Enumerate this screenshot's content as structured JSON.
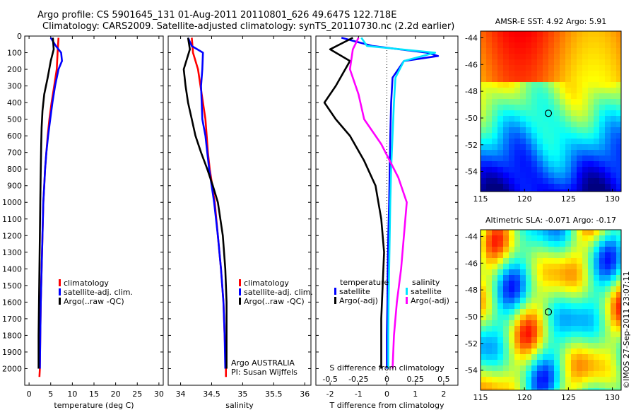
{
  "header": {
    "line1": "Argo profile: CS 5901645_131 01-Aug-2011 20110801_626 49.647S 122.718E",
    "line2": "Climatology: CARS2009. Satellite-adjusted climatology: synTS_20110730.nc (2.2d earlier)"
  },
  "colors": {
    "red": "#ff0000",
    "blue": "#0000ff",
    "black": "#000000",
    "cyan": "#00e5ff",
    "magenta": "#ff00ff"
  },
  "stamp": "©IMOS 27-Sep-2011 23:07:11",
  "chart_data": [
    {
      "type": "line",
      "id": "temperature",
      "xlabel": "temperature (deg C)",
      "ylabel": "",
      "xlim": [
        -1,
        31
      ],
      "ylim": [
        2100,
        0
      ],
      "xticks": [
        0,
        5,
        10,
        15,
        20,
        25,
        30
      ],
      "yticks": [
        0,
        100,
        200,
        300,
        400,
        500,
        600,
        700,
        800,
        900,
        1000,
        1100,
        1200,
        1300,
        1400,
        1500,
        1600,
        1700,
        1800,
        1900,
        2000
      ],
      "legend": [
        "climatology",
        "satellite-adj. clim.",
        "Argo(..raw -QC)"
      ],
      "series": [
        {
          "name": "climatology",
          "color": "red",
          "points": [
            [
              6.8,
              10
            ],
            [
              6.6,
              100
            ],
            [
              6.4,
              200
            ],
            [
              5.8,
              300
            ],
            [
              5.2,
              400
            ],
            [
              4.7,
              500
            ],
            [
              4.3,
              600
            ],
            [
              4.0,
              700
            ],
            [
              3.7,
              800
            ],
            [
              3.5,
              900
            ],
            [
              3.3,
              1000
            ],
            [
              3.1,
              1200
            ],
            [
              2.9,
              1400
            ],
            [
              2.7,
              1600
            ],
            [
              2.6,
              1800
            ],
            [
              2.5,
              2000
            ],
            [
              2.4,
              2050
            ]
          ]
        },
        {
          "name": "satellite-adj. clim.",
          "color": "blue",
          "points": [
            [
              5.0,
              10
            ],
            [
              6.2,
              60
            ],
            [
              7.4,
              100
            ],
            [
              7.6,
              150
            ],
            [
              6.8,
              200
            ],
            [
              6.0,
              300
            ],
            [
              5.4,
              400
            ],
            [
              4.9,
              500
            ],
            [
              4.4,
              600
            ],
            [
              4.0,
              700
            ],
            [
              3.7,
              800
            ],
            [
              3.5,
              900
            ],
            [
              3.3,
              1000
            ],
            [
              3.1,
              1200
            ],
            [
              2.9,
              1400
            ],
            [
              2.7,
              1600
            ],
            [
              2.6,
              1800
            ],
            [
              2.5,
              2000
            ]
          ]
        },
        {
          "name": "Argo(..raw -QC)",
          "color": "black",
          "points": [
            [
              5.5,
              10
            ],
            [
              5.7,
              80
            ],
            [
              5.0,
              150
            ],
            [
              4.3,
              250
            ],
            [
              3.5,
              350
            ],
            [
              3.1,
              450
            ],
            [
              2.9,
              550
            ],
            [
              2.8,
              650
            ],
            [
              2.7,
              800
            ],
            [
              2.6,
              1000
            ],
            [
              2.5,
              1200
            ],
            [
              2.4,
              1400
            ],
            [
              2.3,
              1600
            ],
            [
              2.2,
              1800
            ],
            [
              2.2,
              2000
            ]
          ]
        }
      ]
    },
    {
      "type": "line",
      "id": "salinity",
      "xlabel": "salinity",
      "ylabel": "",
      "xlim": [
        33.8,
        36.1
      ],
      "ylim": [
        2100,
        0
      ],
      "xticks": [
        34,
        34.5,
        35,
        35.5,
        36
      ],
      "legend": [
        "climatology",
        "satellite-adj. clim.",
        "Argo(..raw -QC)"
      ],
      "annotation": [
        "Argo AUSTRALIA",
        "PI: Susan Wijffels"
      ],
      "series": [
        {
          "name": "climatology",
          "color": "red",
          "points": [
            [
              34.18,
              10
            ],
            [
              34.2,
              100
            ],
            [
              34.28,
              200
            ],
            [
              34.32,
              300
            ],
            [
              34.36,
              400
            ],
            [
              34.4,
              500
            ],
            [
              34.42,
              600
            ],
            [
              34.44,
              700
            ],
            [
              34.47,
              800
            ],
            [
              34.51,
              900
            ],
            [
              34.55,
              1000
            ],
            [
              34.6,
              1200
            ],
            [
              34.65,
              1400
            ],
            [
              34.69,
              1600
            ],
            [
              34.71,
              1800
            ],
            [
              34.73,
              2000
            ],
            [
              34.73,
              2050
            ]
          ]
        },
        {
          "name": "satellite-adj. clim.",
          "color": "blue",
          "points": [
            [
              34.12,
              10
            ],
            [
              34.18,
              60
            ],
            [
              34.36,
              100
            ],
            [
              34.35,
              200
            ],
            [
              34.33,
              300
            ],
            [
              34.34,
              400
            ],
            [
              34.35,
              500
            ],
            [
              34.4,
              600
            ],
            [
              34.43,
              700
            ],
            [
              34.46,
              800
            ],
            [
              34.5,
              900
            ],
            [
              34.54,
              1000
            ],
            [
              34.6,
              1200
            ],
            [
              34.65,
              1400
            ],
            [
              34.69,
              1600
            ],
            [
              34.71,
              1800
            ],
            [
              34.72,
              2000
            ]
          ]
        },
        {
          "name": "Argo(..raw -QC)",
          "color": "black",
          "points": [
            [
              34.12,
              10
            ],
            [
              34.15,
              80
            ],
            [
              34.05,
              200
            ],
            [
              34.08,
              300
            ],
            [
              34.12,
              400
            ],
            [
              34.18,
              500
            ],
            [
              34.24,
              600
            ],
            [
              34.33,
              700
            ],
            [
              34.43,
              800
            ],
            [
              34.52,
              900
            ],
            [
              34.6,
              1000
            ],
            [
              34.68,
              1200
            ],
            [
              34.72,
              1400
            ],
            [
              34.74,
              1600
            ],
            [
              34.74,
              1800
            ],
            [
              34.74,
              2000
            ]
          ]
        }
      ]
    },
    {
      "type": "line",
      "id": "difference",
      "xlabel": "T difference from climatology",
      "xlabel2": "S difference from climatology",
      "xlim": [
        -2.5,
        2.5
      ],
      "ylim": [
        2100,
        0
      ],
      "xticks": [
        -2,
        -1,
        0,
        1,
        2
      ],
      "xticks2": [
        -0.5,
        -0.25,
        0,
        0.25,
        0.5
      ],
      "xtick2_labels": [
        "-0.5",
        "-0.25",
        "0",
        "0.25",
        "0.5"
      ],
      "legend": {
        "temperature": [
          "satellite",
          "Argo(-adj)"
        ],
        "salinity": [
          "satellite",
          "Argo(-adj)"
        ]
      },
      "legend_headers": [
        "temperature",
        "salinity"
      ],
      "series": [
        {
          "name": "T satellite",
          "color": "blue",
          "points": [
            [
              -1.6,
              10
            ],
            [
              -0.5,
              60
            ],
            [
              1.4,
              100
            ],
            [
              1.8,
              120
            ],
            [
              0.6,
              150
            ],
            [
              0.2,
              250
            ],
            [
              0.15,
              400
            ],
            [
              0.12,
              600
            ],
            [
              0.1,
              800
            ],
            [
              0.08,
              1000
            ],
            [
              0.05,
              1200
            ],
            [
              0.03,
              1400
            ],
            [
              0.02,
              1600
            ],
            [
              0.0,
              1800
            ],
            [
              0.0,
              2000
            ]
          ]
        },
        {
          "name": "T Argo(-adj)",
          "color": "black",
          "points": [
            [
              -1.2,
              10
            ],
            [
              -2.0,
              80
            ],
            [
              -1.3,
              150
            ],
            [
              -1.8,
              300
            ],
            [
              -2.2,
              400
            ],
            [
              -1.8,
              500
            ],
            [
              -1.3,
              600
            ],
            [
              -0.8,
              750
            ],
            [
              -0.4,
              900
            ],
            [
              -0.2,
              1100
            ],
            [
              -0.1,
              1300
            ],
            [
              -0.15,
              1500
            ],
            [
              -0.2,
              1700
            ],
            [
              -0.2,
              1900
            ],
            [
              -0.2,
              2000
            ]
          ]
        },
        {
          "name": "S satellite",
          "color": "cyan",
          "points": [
            [
              -0.9,
              10
            ],
            [
              -0.7,
              60
            ],
            [
              1.7,
              100
            ],
            [
              0.6,
              150
            ],
            [
              0.3,
              250
            ],
            [
              0.25,
              400
            ],
            [
              0.2,
              600
            ],
            [
              0.15,
              800
            ],
            [
              0.12,
              1000
            ],
            [
              0.1,
              1200
            ],
            [
              0.08,
              1400
            ],
            [
              0.06,
              1600
            ],
            [
              0.05,
              1800
            ],
            [
              0.05,
              2000
            ]
          ]
        },
        {
          "name": "S Argo(-adj)",
          "color": "magenta",
          "points": [
            [
              -1.0,
              10
            ],
            [
              -1.2,
              80
            ],
            [
              -1.3,
              200
            ],
            [
              -1.0,
              350
            ],
            [
              -0.8,
              500
            ],
            [
              -0.2,
              650
            ],
            [
              0.4,
              850
            ],
            [
              0.7,
              1000
            ],
            [
              0.6,
              1200
            ],
            [
              0.5,
              1400
            ],
            [
              0.35,
              1600
            ],
            [
              0.25,
              1800
            ],
            [
              0.2,
              2000
            ]
          ]
        }
      ]
    },
    {
      "type": "heatmap",
      "id": "sst_map",
      "title": "AMSR-E SST: 4.92  Argo: 5.91",
      "xlim": [
        115,
        131
      ],
      "ylim": [
        -55.5,
        -43.5
      ],
      "xticks": [
        115,
        120,
        125,
        130
      ],
      "yticks": [
        -44,
        -46,
        -48,
        -50,
        -52,
        -54
      ],
      "marker": [
        122.718,
        -49.647
      ],
      "palette": "jet"
    },
    {
      "type": "heatmap",
      "id": "sla_map",
      "title": "Altimetric SLA: -0.071  Argo: -0.17",
      "xlim": [
        115,
        131
      ],
      "ylim": [
        -55.5,
        -43.5
      ],
      "xticks": [
        115,
        120,
        125,
        130
      ],
      "yticks": [
        -44,
        -46,
        -48,
        -50,
        -52,
        -54
      ],
      "marker": [
        122.718,
        -49.647
      ],
      "palette": "jet"
    }
  ]
}
